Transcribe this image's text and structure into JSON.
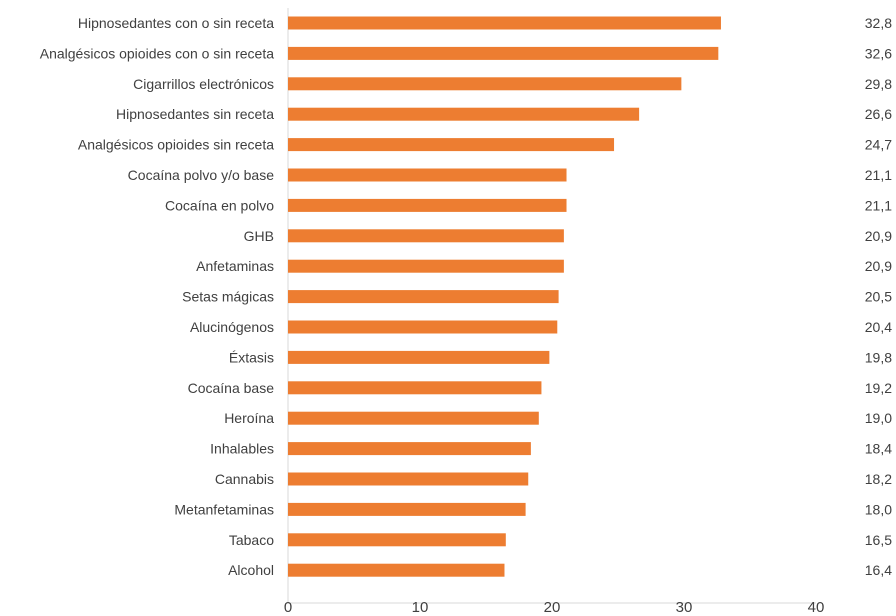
{
  "chart_data": {
    "type": "bar",
    "orientation": "horizontal",
    "categories": [
      "Hipnosedantes con o sin receta",
      "Analgésicos opioides con o sin receta",
      "Cigarrillos electrónicos",
      "Hipnosedantes sin receta",
      "Analgésicos opioides sin receta",
      "Cocaína polvo y/o base",
      "Cocaína en polvo",
      "GHB",
      "Anfetaminas",
      "Setas mágicas",
      "Alucinógenos",
      "Éxtasis",
      "Cocaína base",
      "Heroína",
      "Inhalables",
      "Cannabis",
      "Metanfetaminas",
      "Tabaco",
      "Alcohol"
    ],
    "values": [
      32.8,
      32.6,
      29.8,
      26.6,
      24.7,
      21.1,
      21.1,
      20.9,
      20.9,
      20.5,
      20.4,
      19.8,
      19.2,
      19.0,
      18.4,
      18.2,
      18.0,
      16.5,
      16.4
    ],
    "value_labels": [
      "32,8",
      "32,6",
      "29,8",
      "26,6",
      "24,7",
      "21,1",
      "21,1",
      "20,9",
      "20,9",
      "20,5",
      "20,4",
      "19,8",
      "19,2",
      "19,0",
      "18,4",
      "18,2",
      "18,0",
      "16,5",
      "16,4"
    ],
    "xlim": [
      0,
      40
    ],
    "xticks": [
      0,
      10,
      20,
      30,
      40
    ],
    "grid": false,
    "legend": "none",
    "bar_color": "#ED7D31",
    "text_color": "#404040",
    "axis_color": "#D9D9D9"
  }
}
